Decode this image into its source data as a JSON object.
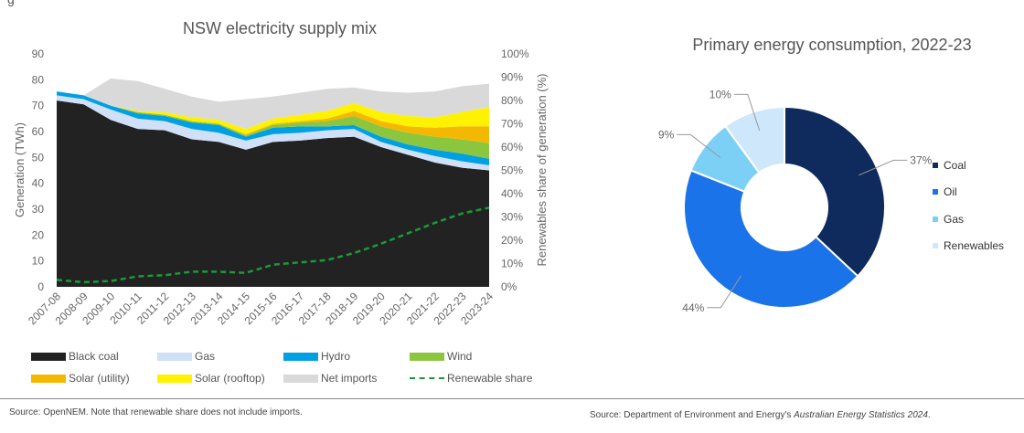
{
  "top_cut_text": "g",
  "sources": {
    "left": "Source: OpenNEM. Note that renewable share does not include imports.",
    "right_prefix": "Source: Department of Environment and Energy's ",
    "right_italic": "Australian Energy Statistics 2024",
    "right_suffix": "."
  },
  "chart_data": [
    {
      "type": "area",
      "title": "NSW electricity supply mix",
      "ylabel": "Generation (TWh)",
      "y2label": "Renewables share of generation (%)",
      "ylim": [
        0,
        90
      ],
      "y2lim": [
        0,
        100
      ],
      "yticks": [
        "0",
        "10",
        "20",
        "30",
        "40",
        "50",
        "60",
        "70",
        "80",
        "90"
      ],
      "y2ticks": [
        "0%",
        "10%",
        "20%",
        "30%",
        "40%",
        "50%",
        "60%",
        "70%",
        "80%",
        "90%",
        "100%"
      ],
      "categories": [
        "2007-08",
        "2008-09",
        "2009-10",
        "2010-11",
        "2011-12",
        "2012-13",
        "2013-14",
        "2014-15",
        "2015-16",
        "2016-17",
        "2017-18",
        "2018-19",
        "2019-20",
        "2020-21",
        "2021-22",
        "2022-23",
        "2023-24"
      ],
      "series": [
        {
          "name": "Black coal",
          "color": "#222222",
          "values": [
            72,
            70.5,
            64.5,
            61,
            60.5,
            57,
            56,
            53,
            56,
            56.5,
            57.5,
            58,
            54,
            51,
            48,
            46,
            45
          ]
        },
        {
          "name": "Gas",
          "color": "#cfe0f7",
          "values": [
            2,
            2,
            4,
            4,
            3.5,
            4,
            3.5,
            3.5,
            3,
            3,
            3,
            3,
            2,
            2,
            2.5,
            2.5,
            2
          ]
        },
        {
          "name": "Hydro",
          "color": "#00a0e3",
          "values": [
            1.5,
            1.5,
            1.5,
            2,
            2,
            2.5,
            3,
            1.5,
            2.5,
            2.5,
            1.5,
            1.5,
            2,
            2,
            2.5,
            3,
            2.5
          ]
        },
        {
          "name": "Wind",
          "color": "#8cc63f",
          "values": [
            0,
            0,
            0,
            0.5,
            0.5,
            0.5,
            0.5,
            0.5,
            1,
            1.5,
            2,
            3.5,
            4,
            4.5,
            5,
            5.5,
            6
          ]
        },
        {
          "name": "Solar (utility)",
          "color": "#f5b800",
          "values": [
            0,
            0,
            0,
            0,
            0,
            0,
            0,
            0.5,
            0.5,
            0.5,
            1,
            2,
            2,
            2.5,
            3.5,
            5,
            6.5
          ]
        },
        {
          "name": "Solar (rooftop)",
          "color": "#fff200",
          "values": [
            0,
            0,
            0,
            0.5,
            1,
            1.5,
            1.5,
            2,
            2,
            2.5,
            3,
            3,
            3.5,
            4,
            4,
            5.5,
            7.5
          ]
        },
        {
          "name": "Net imports",
          "color": "#d9d9d9",
          "values": [
            0,
            0,
            10.5,
            11.5,
            9,
            8,
            7,
            11.5,
            8.5,
            8.5,
            8.5,
            6,
            8,
            9,
            10,
            10,
            9
          ]
        }
      ],
      "line": {
        "name": "Renewable share",
        "color": "#1a9a3a",
        "values": [
          3,
          2,
          2.5,
          4.5,
          5,
          6.5,
          6.5,
          6,
          9.5,
          10.5,
          11.5,
          14.5,
          18.5,
          23,
          27.5,
          31.5,
          34
        ]
      }
    },
    {
      "type": "pie",
      "title": "Primary energy consumption, 2022-23",
      "labels": [
        "Coal",
        "Oil",
        "Gas",
        "Renewables"
      ],
      "values": [
        37,
        44,
        9,
        10
      ],
      "value_labels": [
        "37%",
        "44%",
        "9%",
        "10%"
      ],
      "colors": [
        "#0f2a5c",
        "#1a73e8",
        "#7dd0f5",
        "#cfe7fb"
      ]
    }
  ]
}
